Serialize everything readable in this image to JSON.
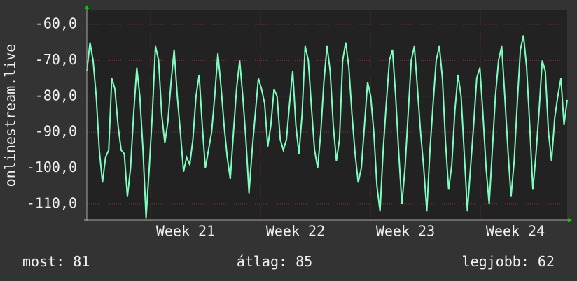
{
  "chart_data": {
    "type": "line",
    "y_label": "onlinestream.live",
    "x_labels": [
      "Week 21",
      "Week 22",
      "Week 23",
      "Week 24"
    ],
    "color": "#7fffbf",
    "ylim": [
      -114.5,
      -55.9
    ],
    "yticks": [
      {
        "value": -60,
        "label": "-60,0"
      },
      {
        "value": -70,
        "label": "-70,0"
      },
      {
        "value": -80,
        "label": "-80,0"
      },
      {
        "value": -90,
        "label": "-90,0"
      },
      {
        "value": -100,
        "label": "-100,0"
      },
      {
        "value": -110,
        "label": "-110,0"
      }
    ],
    "grid": true,
    "series": [
      {
        "name": "onlinestream.live",
        "color": "#7fffbf",
        "values": [
          -73,
          -65,
          -70,
          -80,
          -95,
          -104,
          -97,
          -95,
          -75,
          -78,
          -88,
          -95,
          -96,
          -108,
          -100,
          -85,
          -72,
          -80,
          -95,
          -114,
          -100,
          -85,
          -66,
          -70,
          -85,
          -93,
          -87,
          -76,
          -67,
          -80,
          -90,
          -101,
          -97,
          -99,
          -92,
          -80,
          -74,
          -88,
          -100,
          -95,
          -90,
          -80,
          -68,
          -77,
          -88,
          -97,
          -103,
          -90,
          -78,
          -70,
          -80,
          -92,
          -107,
          -95,
          -85,
          -75,
          -78,
          -82,
          -94,
          -88,
          -78,
          -80,
          -92,
          -95,
          -92,
          -82,
          -73,
          -88,
          -96,
          -85,
          -66,
          -70,
          -83,
          -95,
          -100,
          -90,
          -76,
          -66,
          -73,
          -88,
          -98,
          -92,
          -70,
          -65,
          -72,
          -85,
          -96,
          -104,
          -100,
          -88,
          -76,
          -80,
          -90,
          -105,
          -112,
          -95,
          -82,
          -70,
          -67,
          -80,
          -96,
          -110,
          -100,
          -85,
          -70,
          -66,
          -78,
          -90,
          -100,
          -112,
          -95,
          -82,
          -70,
          -66,
          -75,
          -93,
          -106,
          -99,
          -84,
          -74,
          -80,
          -96,
          -112,
          -100,
          -88,
          -75,
          -72,
          -85,
          -100,
          -110,
          -95,
          -80,
          -70,
          -66,
          -80,
          -95,
          -108,
          -98,
          -82,
          -67,
          -63,
          -72,
          -88,
          -106,
          -96,
          -84,
          -70,
          -73,
          -90,
          -98,
          -86,
          -80,
          -75,
          -88,
          -81
        ]
      }
    ],
    "stats": [
      {
        "label": "most:",
        "value": 81
      },
      {
        "label": "átlag:",
        "value": 85
      },
      {
        "label": "legjobb:",
        "value": 62
      }
    ]
  }
}
